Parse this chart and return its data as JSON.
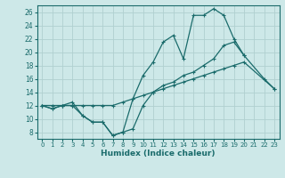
{
  "xlabel": "Humidex (Indice chaleur)",
  "bg_color": "#cde8e8",
  "line_color": "#1a6b6b",
  "grid_color": "#b0d0d0",
  "xlim": [
    -0.5,
    23.5
  ],
  "ylim": [
    7,
    27
  ],
  "xticks": [
    0,
    1,
    2,
    3,
    4,
    5,
    6,
    7,
    8,
    9,
    10,
    11,
    12,
    13,
    14,
    15,
    16,
    17,
    18,
    19,
    20,
    21,
    22,
    23
  ],
  "yticks": [
    8,
    10,
    12,
    14,
    16,
    18,
    20,
    22,
    24,
    26
  ],
  "series1_x": [
    0,
    1,
    2,
    3,
    4,
    5,
    6,
    7,
    8,
    9,
    10,
    11,
    12,
    13,
    14,
    15,
    16,
    17,
    18,
    19,
    20,
    22,
    23
  ],
  "series1_y": [
    12,
    11.5,
    12,
    12,
    10.5,
    9.5,
    9.5,
    7.5,
    8.0,
    13.0,
    16.5,
    18.5,
    21.5,
    22.5,
    19.0,
    25.5,
    25.5,
    26.5,
    25.5,
    22.0,
    19.5,
    16.0,
    14.5
  ],
  "series2_x": [
    0,
    1,
    2,
    3,
    4,
    5,
    6,
    7,
    8,
    9,
    10,
    11,
    12,
    13,
    14,
    15,
    16,
    17,
    18,
    19,
    20,
    23
  ],
  "series2_y": [
    12,
    12,
    12,
    12,
    12,
    12,
    12,
    12,
    12.5,
    13,
    13.5,
    14,
    14.5,
    15,
    15.5,
    16,
    16.5,
    17,
    17.5,
    18,
    18.5,
    14.5
  ],
  "series3_x": [
    0,
    1,
    2,
    3,
    4,
    5,
    6,
    7,
    8,
    9,
    10,
    11,
    12,
    13,
    14,
    15,
    16,
    17,
    18,
    19,
    20
  ],
  "series3_y": [
    12,
    11.5,
    12,
    12.5,
    10.5,
    9.5,
    9.5,
    7.5,
    8.0,
    8.5,
    12.0,
    14.0,
    15.0,
    15.5,
    16.5,
    17.0,
    18.0,
    19.0,
    21.0,
    21.5,
    19.5
  ]
}
